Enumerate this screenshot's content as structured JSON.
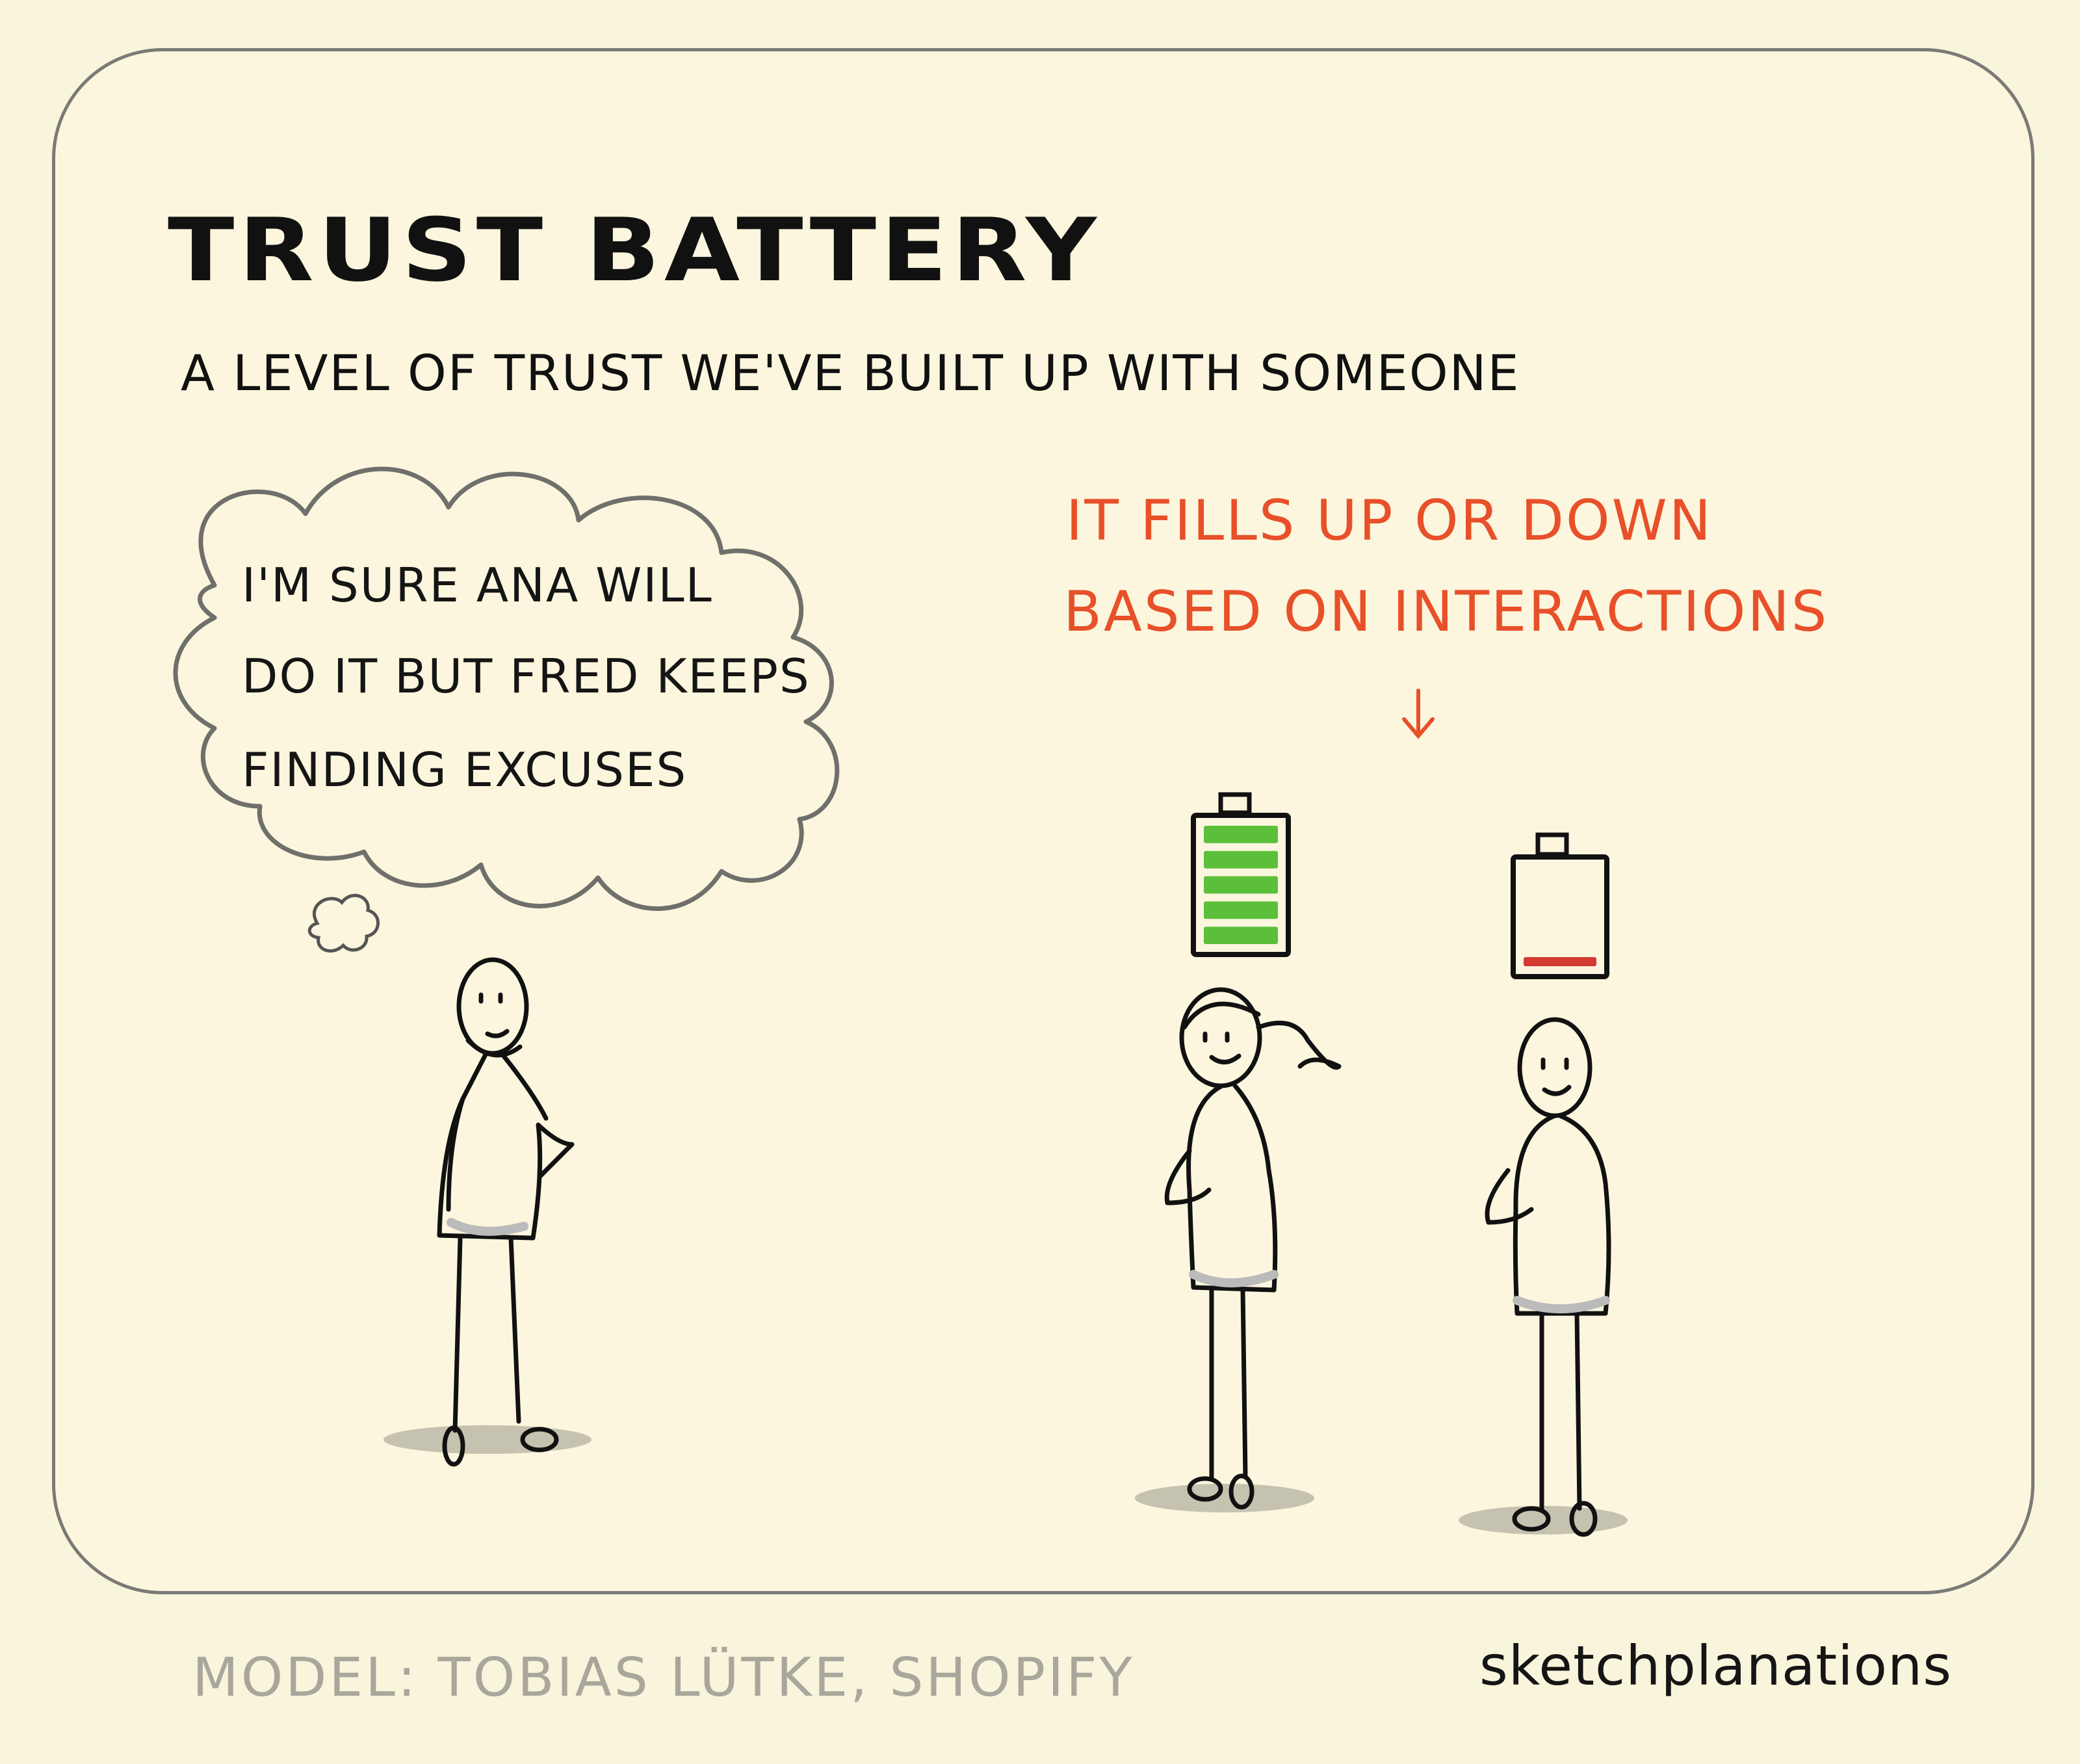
{
  "title": "TRUST BATTERY",
  "subtitle": "A LEVEL OF TRUST WE'VE BUILT UP WITH SOMEONE",
  "annotation": {
    "line1": "IT FILLS UP OR DOWN",
    "line2": "BASED ON INTERACTIONS",
    "color": "#e8502a"
  },
  "thought_bubble": {
    "line1": "I'M SURE ANA WILL",
    "line2": "DO IT BUT FRED KEEPS",
    "line3": "FINDING EXCUSES"
  },
  "batteries": {
    "ana": {
      "charge": 1.0,
      "color": "#5cbf3a"
    },
    "fred": {
      "charge": 0.1,
      "color": "#d23a32"
    }
  },
  "credit": "MODEL: TOBIAS LÜTKE, SHOPIFY",
  "brand": "sketchplanations",
  "icons": {
    "arrow": "arrow-down-icon",
    "thought": "thought-bubble-icon"
  }
}
